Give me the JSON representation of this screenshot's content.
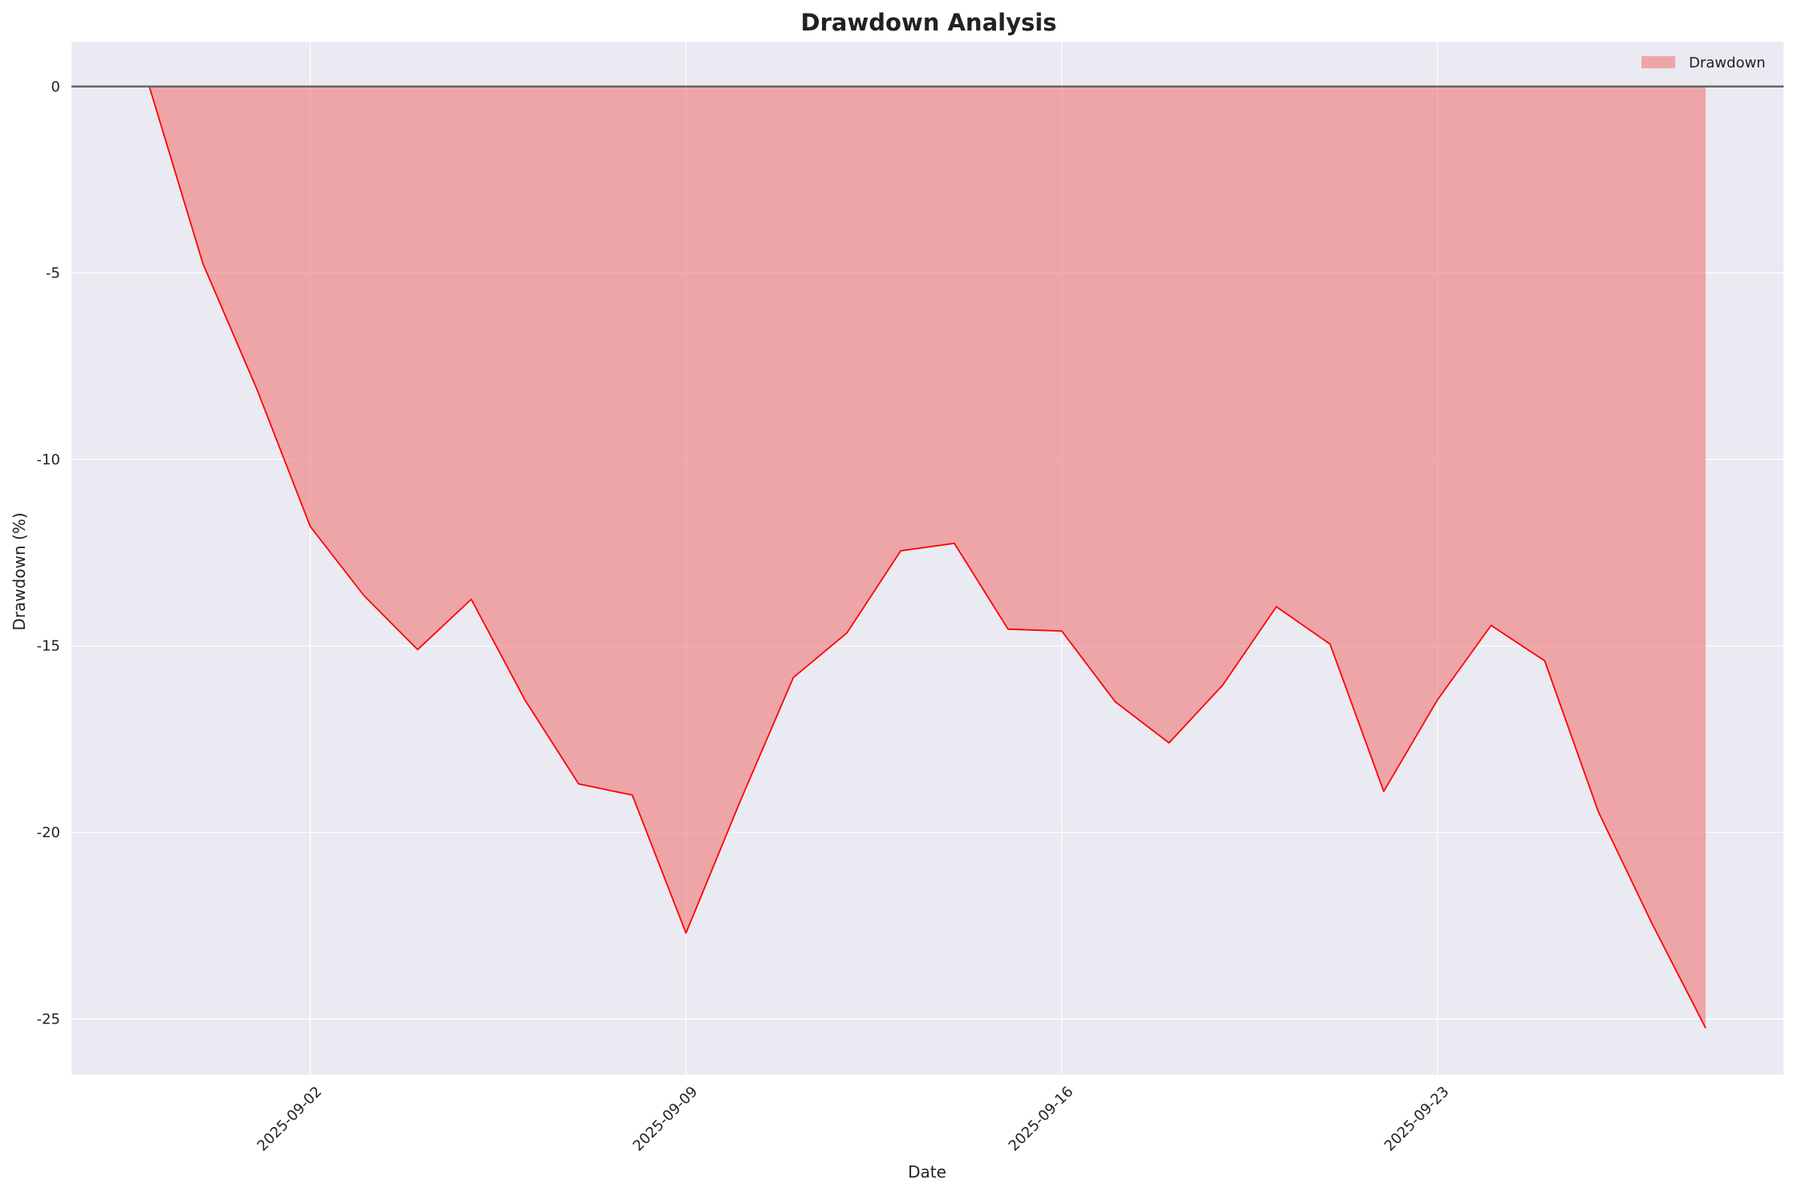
{
  "chart_data": {
    "type": "area",
    "title": "Drawdown Analysis",
    "xlabel": "Date",
    "ylabel": "Drawdown (%)",
    "x_start": "2025-08-30",
    "x_step_days": 1,
    "x_ticks": [
      "2025-09-02",
      "2025-09-09",
      "2025-09-16",
      "2025-09-23"
    ],
    "x_tick_day_index": [
      3,
      10,
      17,
      24
    ],
    "xlim_day_index": [
      -1.45,
      30.45
    ],
    "y_ticks": [
      0,
      -5,
      -10,
      -15,
      -20,
      -25
    ],
    "y_tick_labels": [
      "0",
      "-5",
      "-10",
      "-15",
      "-20",
      "-25"
    ],
    "ylim": [
      -26.5,
      1.2
    ],
    "series": [
      {
        "name": "Drawdown",
        "values": [
          0,
          -4.75,
          -8.1,
          -11.8,
          -13.65,
          -15.1,
          -13.75,
          -16.45,
          -18.7,
          -19.0,
          -22.7,
          -19.2,
          -15.85,
          -14.65,
          -12.45,
          -12.25,
          -14.55,
          -14.6,
          -16.5,
          -17.6,
          -16.05,
          -13.95,
          -14.95,
          -18.9,
          -16.45,
          -14.45,
          -15.4,
          -19.45,
          -22.45,
          -25.25
        ],
        "color": "#ff0000",
        "fill_color": "#f08080"
      }
    ],
    "zero_line": true,
    "grid": true,
    "legend": {
      "position": "top-right",
      "label": "Drawdown"
    },
    "colors": {
      "plot_background": "#eaeaf2",
      "grid": "#ffffff",
      "zero_line": "#666666"
    }
  }
}
